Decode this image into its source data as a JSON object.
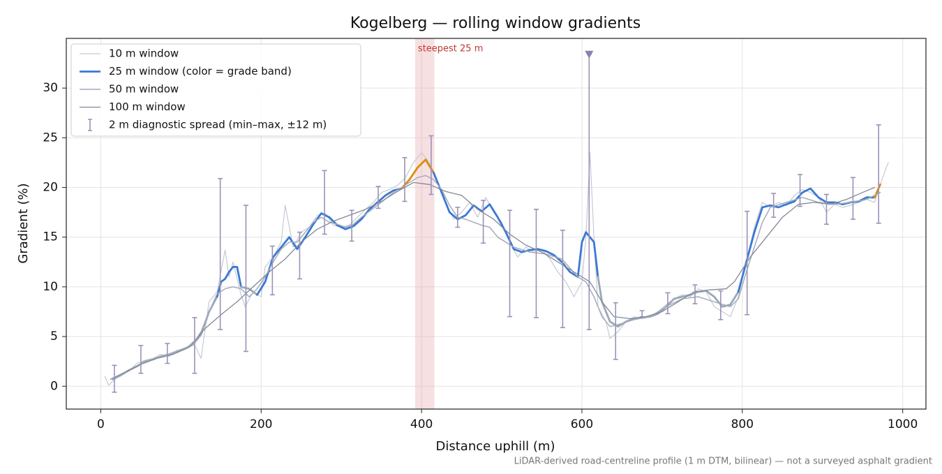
{
  "chart_data": {
    "type": "line",
    "title": "Kogelberg — rolling window gradients",
    "x_label": "Distance uphill (m)",
    "y_label": "Gradient (%)",
    "footnote": "LiDAR-derived road-centreline profile (1 m DTM, bilinear) — not a surveyed asphalt gradient",
    "xlim": [
      -43,
      1029
    ],
    "ylim": [
      -2.3,
      35
    ],
    "xticks": [
      0,
      200,
      400,
      600,
      800,
      1000
    ],
    "yticks": [
      0,
      5,
      10,
      15,
      20,
      25,
      30
    ],
    "grid": true,
    "legend": "upper left",
    "series": [
      {
        "name": "10 m window",
        "color": "#c4cad3",
        "width": 1.2,
        "x": [
          5,
          10,
          15,
          25,
          35,
          45,
          55,
          65,
          75,
          85,
          95,
          105,
          115,
          125,
          135,
          145,
          155,
          160,
          165,
          175,
          180,
          190,
          200,
          205,
          215,
          225,
          230,
          240,
          250,
          260,
          270,
          280,
          290,
          300,
          310,
          320,
          330,
          340,
          350,
          360,
          370,
          380,
          390,
          400,
          410,
          420,
          430,
          440,
          450,
          460,
          470,
          480,
          490,
          500,
          510,
          520,
          530,
          540,
          550,
          560,
          570,
          580,
          590,
          600,
          605,
          610,
          615,
          620,
          630,
          635,
          645,
          655,
          665,
          675,
          685,
          695,
          705,
          715,
          725,
          735,
          745,
          755,
          765,
          775,
          785,
          795,
          805,
          815,
          825,
          835,
          845,
          855,
          865,
          875,
          885,
          895,
          905,
          915,
          925,
          935,
          945,
          955,
          965,
          975,
          982
        ],
        "values": [
          1.0,
          0.1,
          0.5,
          1.2,
          1.5,
          2.3,
          2.6,
          2.8,
          3.2,
          3.0,
          3.6,
          3.7,
          4.5,
          2.8,
          8.5,
          9.5,
          13.7,
          11.0,
          12.5,
          9.2,
          8.0,
          9.5,
          9.0,
          12.0,
          13.0,
          14.5,
          18.2,
          14.0,
          15.5,
          16.0,
          17.2,
          17.4,
          16.2,
          16.0,
          16.2,
          17.0,
          17.8,
          18.5,
          19.5,
          19.8,
          20.2,
          21.0,
          22.5,
          23.5,
          22.5,
          20.5,
          18.5,
          16.8,
          17.5,
          18.5,
          17.0,
          19.0,
          17.5,
          16.5,
          14.5,
          13.0,
          14.0,
          13.5,
          13.8,
          12.8,
          11.5,
          10.5,
          9.0,
          10.5,
          15.0,
          23.5,
          15.0,
          8.0,
          6.5,
          4.8,
          5.5,
          6.5,
          7.0,
          6.8,
          7.0,
          7.5,
          8.2,
          8.8,
          9.2,
          9.0,
          9.8,
          9.5,
          8.0,
          7.5,
          7.0,
          9.0,
          12.5,
          16.0,
          18.5,
          18.0,
          18.5,
          18.2,
          19.2,
          19.8,
          19.5,
          19.0,
          17.5,
          18.3,
          18.0,
          18.2,
          18.5,
          18.8,
          18.5,
          21.0,
          22.5
        ]
      },
      {
        "name": "25 m window (color = grade band)",
        "color": "#9aa8b8",
        "width": 2.8,
        "grade_bands": [
          {
            "from": 10,
            "color": "#3a78d4"
          },
          {
            "from": 20,
            "color": "#e08a00"
          }
        ],
        "x": [
          15,
          25,
          35,
          45,
          55,
          65,
          75,
          85,
          95,
          105,
          115,
          125,
          135,
          145,
          150,
          155,
          160,
          165,
          170,
          175,
          185,
          195,
          205,
          215,
          225,
          235,
          245,
          255,
          265,
          275,
          285,
          295,
          305,
          315,
          325,
          335,
          345,
          355,
          365,
          375,
          385,
          395,
          405,
          415,
          425,
          435,
          445,
          455,
          465,
          475,
          485,
          495,
          505,
          515,
          525,
          535,
          545,
          555,
          565,
          575,
          585,
          595,
          600,
          605,
          615,
          620,
          625,
          635,
          645,
          655,
          665,
          675,
          685,
          695,
          705,
          715,
          725,
          735,
          745,
          755,
          765,
          775,
          785,
          795,
          805,
          815,
          825,
          835,
          845,
          855,
          865,
          875,
          885,
          895,
          905,
          915,
          925,
          935,
          945,
          955,
          965,
          972
        ],
        "values": [
          0.7,
          1.1,
          1.6,
          2.0,
          2.5,
          2.7,
          3.0,
          3.2,
          3.5,
          3.8,
          4.2,
          5.2,
          7.5,
          9.0,
          10.5,
          10.8,
          11.5,
          12.0,
          12.0,
          10.0,
          9.8,
          9.2,
          10.5,
          13.0,
          14.0,
          15.0,
          13.8,
          15.0,
          16.3,
          17.4,
          17.0,
          16.2,
          15.8,
          16.1,
          16.8,
          17.8,
          18.5,
          19.2,
          19.7,
          19.9,
          20.8,
          22.0,
          22.8,
          21.5,
          19.5,
          17.5,
          16.8,
          17.2,
          18.2,
          17.6,
          18.3,
          17.0,
          15.5,
          13.8,
          13.5,
          13.7,
          13.8,
          13.6,
          13.2,
          12.5,
          11.5,
          11.0,
          14.5,
          15.5,
          14.5,
          11.0,
          8.5,
          6.5,
          6.0,
          6.5,
          6.8,
          6.9,
          7.0,
          7.3,
          8.0,
          8.8,
          9.0,
          9.2,
          9.5,
          9.6,
          9.0,
          8.0,
          8.2,
          9.5,
          12.5,
          15.5,
          18.0,
          18.2,
          18.0,
          18.3,
          18.6,
          19.5,
          19.9,
          19.0,
          18.5,
          18.5,
          18.3,
          18.5,
          18.6,
          19.0,
          19.0,
          20.3
        ]
      },
      {
        "name": "50 m window",
        "color": "#a3acba",
        "width": 1.5,
        "x": [
          15,
          35,
          55,
          75,
          95,
          115,
          125,
          135,
          145,
          155,
          165,
          175,
          185,
          195,
          205,
          215,
          225,
          235,
          245,
          255,
          265,
          275,
          285,
          295,
          305,
          315,
          325,
          345,
          365,
          385,
          395,
          405,
          415,
          425,
          435,
          445,
          455,
          465,
          475,
          485,
          495,
          505,
          515,
          535,
          555,
          575,
          595,
          605,
          615,
          625,
          635,
          645,
          665,
          685,
          705,
          725,
          745,
          765,
          785,
          795,
          805,
          815,
          825,
          835,
          855,
          875,
          895,
          915,
          935,
          955,
          972
        ],
        "values": [
          0.8,
          1.6,
          2.5,
          3.0,
          3.4,
          4.2,
          5.5,
          7.5,
          9.3,
          9.8,
          10.0,
          9.8,
          9.0,
          9.8,
          11.0,
          12.5,
          13.8,
          14.5,
          14.5,
          15.5,
          16.5,
          17.0,
          16.5,
          16.3,
          16.0,
          16.3,
          17.0,
          18.2,
          19.5,
          20.5,
          21.0,
          21.2,
          20.8,
          19.8,
          18.2,
          17.0,
          16.8,
          16.5,
          16.2,
          16.0,
          15.0,
          14.5,
          14.0,
          13.5,
          13.3,
          12.8,
          11.0,
          10.5,
          9.0,
          7.0,
          6.0,
          6.2,
          6.7,
          7.0,
          8.0,
          8.8,
          9.0,
          8.5,
          8.0,
          8.8,
          11.5,
          14.0,
          16.5,
          18.0,
          18.5,
          19.0,
          18.5,
          18.3,
          18.5,
          18.8,
          19.5
        ]
      },
      {
        "name": "100 m window",
        "color": "#818896",
        "width": 1.3,
        "x": [
          12,
          30,
          50,
          70,
          90,
          110,
          130,
          150,
          170,
          190,
          210,
          230,
          250,
          270,
          290,
          310,
          330,
          350,
          370,
          390,
          410,
          430,
          450,
          470,
          490,
          510,
          530,
          550,
          570,
          590,
          610,
          625,
          640,
          660,
          680,
          700,
          720,
          740,
          760,
          780,
          790,
          810,
          830,
          850,
          870,
          890,
          910,
          930,
          950,
          965
        ],
        "values": [
          0.7,
          1.4,
          2.2,
          2.8,
          3.2,
          3.9,
          5.8,
          7.2,
          8.5,
          10.0,
          11.5,
          12.8,
          14.5,
          15.8,
          16.6,
          17.2,
          17.8,
          18.6,
          19.6,
          20.5,
          20.3,
          19.6,
          19.2,
          17.8,
          16.8,
          15.3,
          14.2,
          13.5,
          12.5,
          11.5,
          10.5,
          8.5,
          7.0,
          6.8,
          7.0,
          7.5,
          8.5,
          9.5,
          9.7,
          9.8,
          10.5,
          13.0,
          15.0,
          17.0,
          18.3,
          18.5,
          18.3,
          18.8,
          19.5,
          20.0
        ]
      }
    ],
    "errorbars": {
      "name": "2 m diagnostic spread (min–max, ±12 m)",
      "color": "#9a92b8",
      "x": [
        17,
        50,
        83,
        117,
        149,
        181,
        214,
        248,
        279,
        313,
        346,
        379,
        412,
        445,
        477,
        510,
        543,
        576,
        609,
        642,
        675,
        707,
        741,
        773,
        806,
        839,
        872,
        905,
        938,
        970
      ],
      "low": [
        -0.6,
        1.3,
        2.3,
        1.3,
        5.7,
        3.5,
        9.2,
        10.8,
        15.3,
        14.6,
        17.9,
        18.6,
        19.3,
        16.0,
        14.4,
        7.0,
        6.9,
        5.9,
        5.7,
        2.7,
        7.0,
        7.3,
        8.3,
        6.7,
        7.2,
        17.0,
        18.1,
        16.3,
        16.8,
        16.4
      ],
      "high": [
        2.1,
        4.1,
        4.3,
        6.9,
        20.9,
        18.2,
        14.1,
        15.5,
        21.7,
        17.7,
        20.1,
        23.0,
        25.2,
        18.0,
        18.7,
        17.7,
        17.8,
        15.7,
        33.4,
        8.4,
        7.6,
        9.4,
        10.2,
        9.6,
        17.6,
        19.4,
        21.3,
        19.3,
        21.0,
        26.3
      ]
    },
    "outliers": {
      "color": "#8a7fae",
      "x": [
        609
      ],
      "y": [
        33.4
      ]
    },
    "highlight": {
      "label": "steepest 25 m",
      "x": [
        392,
        416
      ],
      "color": "#e8a5ad",
      "label_color": "#c0392b"
    }
  }
}
